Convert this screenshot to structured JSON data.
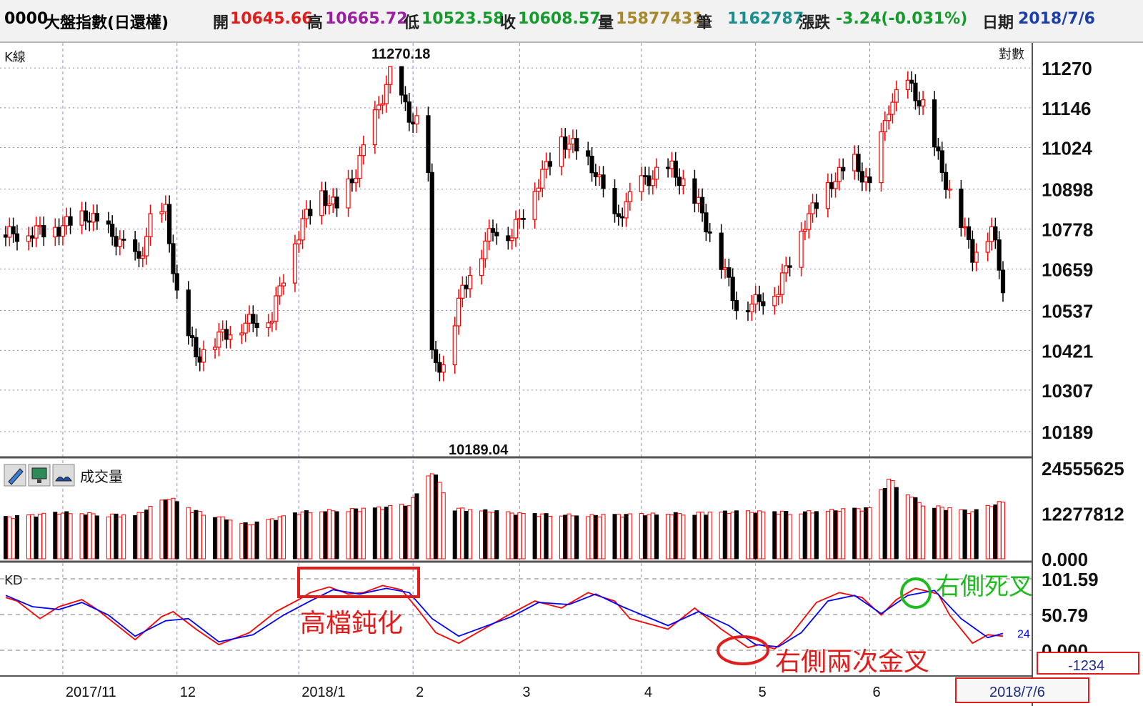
{
  "header": {
    "code": "0000",
    "name": "大盤指數(日還權)",
    "open_label": "開",
    "open": "10645.66",
    "high_label": "高",
    "high": "10665.72",
    "low_label": "低",
    "low": "10523.58",
    "close_label": "收",
    "close": "10608.57",
    "volume_label": "量",
    "volume": "15877431",
    "trades_label": "筆",
    "trades": "1162787",
    "change_label": "漲跌",
    "change": "-3.24(-0.031%)",
    "date_label": "日期",
    "date": "2018/7/6"
  },
  "colors": {
    "up": "#ff0000",
    "down": "#000000",
    "k_line": "#ff0000",
    "d_line": "#0000ff",
    "grid": "#8a8ad0",
    "annotation_red": "#e21b1b",
    "annotation_green": "#1dbb1d"
  },
  "chart_data": [
    {
      "type": "candlestick",
      "panel_label": "K線",
      "scale_label": "對數",
      "scale": "log",
      "ylim": [
        10189.04,
        11270.18
      ],
      "y_ticks": [
        "11270",
        "11146",
        "11024",
        "10898",
        "10778",
        "10659",
        "10537",
        "10421",
        "10307",
        "10189"
      ],
      "y_tick_values": [
        11270,
        11146,
        11024,
        10898,
        10778,
        10659,
        10537,
        10421,
        10307,
        10189
      ],
      "x_ticks": [
        "2017/11",
        "12",
        "2018/1",
        "2",
        "3",
        "4",
        "5",
        "6"
      ],
      "x_tick_dates": [
        "2017-11-01",
        "2017-12-01",
        "2018-01-02",
        "2018-02-01",
        "2018-03-01",
        "2018-04-02",
        "2018-05-02",
        "2018-06-01"
      ],
      "x_range": [
        "2017-10-17",
        "2018-07-06"
      ],
      "max_label": "11270.18",
      "min_label": "10189.04",
      "close_points": [
        {
          "x": "2017-10-17",
          "y": 10760
        },
        {
          "x": "2017-10-31",
          "y": 10780
        },
        {
          "x": "2017-11-07",
          "y": 10820
        },
        {
          "x": "2017-11-14",
          "y": 10760
        },
        {
          "x": "2017-11-21",
          "y": 10680
        },
        {
          "x": "2017-11-24",
          "y": 10800
        },
        {
          "x": "2017-11-28",
          "y": 10830
        },
        {
          "x": "2017-12-01",
          "y": 10580
        },
        {
          "x": "2017-12-06",
          "y": 10400
        },
        {
          "x": "2017-12-12",
          "y": 10460
        },
        {
          "x": "2017-12-19",
          "y": 10500
        },
        {
          "x": "2017-12-26",
          "y": 10520
        },
        {
          "x": "2017-12-29",
          "y": 10640
        },
        {
          "x": "2018-01-03",
          "y": 10800
        },
        {
          "x": "2018-01-08",
          "y": 10880
        },
        {
          "x": "2018-01-12",
          "y": 10840
        },
        {
          "x": "2018-01-17",
          "y": 10950
        },
        {
          "x": "2018-01-23",
          "y": 11150
        },
        {
          "x": "2018-01-26",
          "y": 11250
        },
        {
          "x": "2018-01-31",
          "y": 11120
        },
        {
          "x": "2018-02-02",
          "y": 11100
        },
        {
          "x": "2018-02-05",
          "y": 10950
        },
        {
          "x": "2018-02-06",
          "y": 10400
        },
        {
          "x": "2018-02-09",
          "y": 10370
        },
        {
          "x": "2018-02-14",
          "y": 10600
        },
        {
          "x": "2018-02-22",
          "y": 10780
        },
        {
          "x": "2018-02-27",
          "y": 10760
        },
        {
          "x": "2018-03-05",
          "y": 10900
        },
        {
          "x": "2018-03-12",
          "y": 11050
        },
        {
          "x": "2018-03-16",
          "y": 11020
        },
        {
          "x": "2018-03-21",
          "y": 10950
        },
        {
          "x": "2018-03-26",
          "y": 10800
        },
        {
          "x": "2018-04-02",
          "y": 10920
        },
        {
          "x": "2018-04-10",
          "y": 10960
        },
        {
          "x": "2018-04-17",
          "y": 10850
        },
        {
          "x": "2018-04-24",
          "y": 10650
        },
        {
          "x": "2018-04-27",
          "y": 10550
        },
        {
          "x": "2018-05-02",
          "y": 10560
        },
        {
          "x": "2018-05-08",
          "y": 10600
        },
        {
          "x": "2018-05-15",
          "y": 10800
        },
        {
          "x": "2018-05-22",
          "y": 10920
        },
        {
          "x": "2018-05-28",
          "y": 10980
        },
        {
          "x": "2018-06-01",
          "y": 10900
        },
        {
          "x": "2018-06-06",
          "y": 11150
        },
        {
          "x": "2018-06-11",
          "y": 11220
        },
        {
          "x": "2018-06-15",
          "y": 11150
        },
        {
          "x": "2018-06-20",
          "y": 10950
        },
        {
          "x": "2018-06-25",
          "y": 10800
        },
        {
          "x": "2018-06-28",
          "y": 10700
        },
        {
          "x": "2018-07-03",
          "y": 10780
        },
        {
          "x": "2018-07-06",
          "y": 10608.57
        }
      ]
    },
    {
      "type": "bar",
      "panel_label": "成交量",
      "y_ticks": [
        "24555625",
        "12277812",
        "0.000"
      ],
      "y_tick_values": [
        24555625,
        12277812,
        0
      ],
      "ylim": [
        0,
        24555625
      ],
      "x_range": [
        "2017-10-17",
        "2018-07-06"
      ],
      "volume_points": [
        {
          "x": "2017-10-17",
          "y": 11500000
        },
        {
          "x": "2017-11-01",
          "y": 12800000
        },
        {
          "x": "2017-11-20",
          "y": 12000000
        },
        {
          "x": "2017-11-29",
          "y": 17000000
        },
        {
          "x": "2017-12-05",
          "y": 13500000
        },
        {
          "x": "2017-12-20",
          "y": 9500000
        },
        {
          "x": "2018-01-03",
          "y": 13000000
        },
        {
          "x": "2018-01-22",
          "y": 14000000
        },
        {
          "x": "2018-01-31",
          "y": 15000000
        },
        {
          "x": "2018-02-06",
          "y": 24555625
        },
        {
          "x": "2018-02-12",
          "y": 14000000
        },
        {
          "x": "2018-03-01",
          "y": 12500000
        },
        {
          "x": "2018-03-20",
          "y": 12000000
        },
        {
          "x": "2018-04-10",
          "y": 12500000
        },
        {
          "x": "2018-04-25",
          "y": 13000000
        },
        {
          "x": "2018-05-15",
          "y": 13000000
        },
        {
          "x": "2018-06-01",
          "y": 14000000
        },
        {
          "x": "2018-06-06",
          "y": 22000000
        },
        {
          "x": "2018-06-15",
          "y": 15000000
        },
        {
          "x": "2018-06-28",
          "y": 13000000
        },
        {
          "x": "2018-07-06",
          "y": 15877431
        }
      ]
    },
    {
      "type": "line",
      "panel_label": "KD",
      "y_ticks": [
        "101.59",
        "50.79",
        "0.000"
      ],
      "y_tick_values": [
        101.59,
        50.79,
        0
      ],
      "ylim": [
        0,
        101.59
      ],
      "x_range": [
        "2017-10-17",
        "2018-07-06"
      ],
      "last_value_label": "24",
      "series": [
        {
          "color": "#ff0000",
          "points": [
            {
              "x": "2017-10-17",
              "y": 75
            },
            {
              "x": "2017-10-20",
              "y": 70
            },
            {
              "x": "2017-10-26",
              "y": 45
            },
            {
              "x": "2017-10-31",
              "y": 62
            },
            {
              "x": "2017-11-06",
              "y": 72
            },
            {
              "x": "2017-11-10",
              "y": 58
            },
            {
              "x": "2017-11-20",
              "y": 15
            },
            {
              "x": "2017-11-27",
              "y": 48
            },
            {
              "x": "2017-11-30",
              "y": 55
            },
            {
              "x": "2017-12-06",
              "y": 30
            },
            {
              "x": "2017-12-12",
              "y": 8
            },
            {
              "x": "2017-12-20",
              "y": 25
            },
            {
              "x": "2017-12-27",
              "y": 55
            },
            {
              "x": "2018-01-02",
              "y": 72
            },
            {
              "x": "2018-01-05",
              "y": 82
            },
            {
              "x": "2018-01-10",
              "y": 90
            },
            {
              "x": "2018-01-15",
              "y": 80
            },
            {
              "x": "2018-01-19",
              "y": 82
            },
            {
              "x": "2018-01-24",
              "y": 92
            },
            {
              "x": "2018-01-29",
              "y": 86
            },
            {
              "x": "2018-02-02",
              "y": 60
            },
            {
              "x": "2018-02-07",
              "y": 25
            },
            {
              "x": "2018-02-13",
              "y": 10
            },
            {
              "x": "2018-02-26",
              "y": 50
            },
            {
              "x": "2018-03-05",
              "y": 70
            },
            {
              "x": "2018-03-12",
              "y": 60
            },
            {
              "x": "2018-03-19",
              "y": 82
            },
            {
              "x": "2018-03-26",
              "y": 70
            },
            {
              "x": "2018-03-30",
              "y": 45
            },
            {
              "x": "2018-04-09",
              "y": 30
            },
            {
              "x": "2018-04-16",
              "y": 60
            },
            {
              "x": "2018-04-23",
              "y": 30
            },
            {
              "x": "2018-04-30",
              "y": 4
            },
            {
              "x": "2018-05-03",
              "y": 8
            },
            {
              "x": "2018-05-07",
              "y": 2
            },
            {
              "x": "2018-05-11",
              "y": 20
            },
            {
              "x": "2018-05-18",
              "y": 68
            },
            {
              "x": "2018-05-24",
              "y": 82
            },
            {
              "x": "2018-05-30",
              "y": 75
            },
            {
              "x": "2018-06-04",
              "y": 50
            },
            {
              "x": "2018-06-08",
              "y": 72
            },
            {
              "x": "2018-06-13",
              "y": 88
            },
            {
              "x": "2018-06-19",
              "y": 80
            },
            {
              "x": "2018-06-22",
              "y": 50
            },
            {
              "x": "2018-06-28",
              "y": 10
            },
            {
              "x": "2018-07-02",
              "y": 22
            },
            {
              "x": "2018-07-06",
              "y": 20
            }
          ]
        },
        {
          "color": "#0000ff",
          "points": [
            {
              "x": "2017-10-17",
              "y": 78
            },
            {
              "x": "2017-10-24",
              "y": 62
            },
            {
              "x": "2017-10-31",
              "y": 58
            },
            {
              "x": "2017-11-06",
              "y": 68
            },
            {
              "x": "2017-11-13",
              "y": 50
            },
            {
              "x": "2017-11-20",
              "y": 20
            },
            {
              "x": "2017-11-28",
              "y": 42
            },
            {
              "x": "2017-12-04",
              "y": 45
            },
            {
              "x": "2017-12-12",
              "y": 12
            },
            {
              "x": "2017-12-21",
              "y": 22
            },
            {
              "x": "2017-12-29",
              "y": 50
            },
            {
              "x": "2018-01-05",
              "y": 70
            },
            {
              "x": "2018-01-11",
              "y": 86
            },
            {
              "x": "2018-01-18",
              "y": 80
            },
            {
              "x": "2018-01-25",
              "y": 88
            },
            {
              "x": "2018-01-31",
              "y": 82
            },
            {
              "x": "2018-02-06",
              "y": 45
            },
            {
              "x": "2018-02-13",
              "y": 20
            },
            {
              "x": "2018-02-27",
              "y": 48
            },
            {
              "x": "2018-03-06",
              "y": 68
            },
            {
              "x": "2018-03-14",
              "y": 65
            },
            {
              "x": "2018-03-21",
              "y": 80
            },
            {
              "x": "2018-03-28",
              "y": 62
            },
            {
              "x": "2018-04-09",
              "y": 35
            },
            {
              "x": "2018-04-17",
              "y": 55
            },
            {
              "x": "2018-04-25",
              "y": 35
            },
            {
              "x": "2018-05-02",
              "y": 8
            },
            {
              "x": "2018-05-08",
              "y": 5
            },
            {
              "x": "2018-05-14",
              "y": 25
            },
            {
              "x": "2018-05-21",
              "y": 70
            },
            {
              "x": "2018-05-28",
              "y": 78
            },
            {
              "x": "2018-06-04",
              "y": 52
            },
            {
              "x": "2018-06-11",
              "y": 78
            },
            {
              "x": "2018-06-18",
              "y": 85
            },
            {
              "x": "2018-06-25",
              "y": 45
            },
            {
              "x": "2018-07-02",
              "y": 18
            },
            {
              "x": "2018-07-06",
              "y": 24
            }
          ]
        }
      ]
    }
  ],
  "annotations": {
    "high_blunting": "高檔鈍化",
    "right_golden_cross": "右側兩次金叉",
    "right_death_cross": "右側死叉"
  },
  "footer": {
    "right_value": "-1234",
    "date_box": "2018/7/6"
  },
  "toolbar_icons": [
    "pencil-icon",
    "monitor-icon",
    "book-icon"
  ]
}
